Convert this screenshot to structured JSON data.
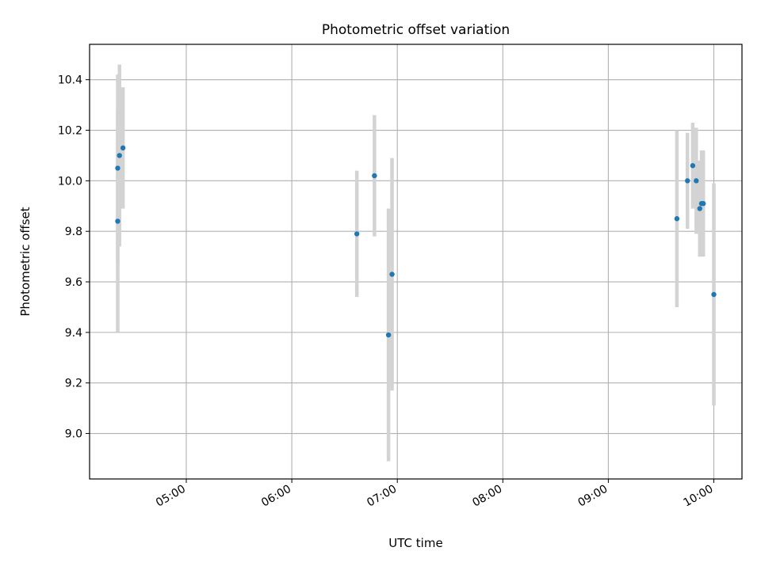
{
  "chart_data": {
    "type": "scatter",
    "title": "Photometric offset variation",
    "xlabel": "UTC time",
    "ylabel": "Photometric offset",
    "x_ticks": [
      "05:00",
      "06:00",
      "07:00",
      "08:00",
      "09:00",
      "10:00"
    ],
    "y_ticks": [
      "9.0",
      "9.2",
      "9.4",
      "9.6",
      "9.8",
      "10.0",
      "10.2",
      "10.4"
    ],
    "xlim": [
      "04:05",
      "10:16"
    ],
    "ylim": [
      8.82,
      10.54
    ],
    "grid": true,
    "point_color": "#1f77b4",
    "errorbar_color": "#d3d3d3",
    "series": [
      {
        "points": [
          {
            "x": "04:21",
            "y": 9.84,
            "yerr": 0.44
          },
          {
            "x": "04:21",
            "y": 10.05,
            "yerr": 0.37
          },
          {
            "x": "04:22",
            "y": 10.1,
            "yerr": 0.36
          },
          {
            "x": "04:24",
            "y": 10.13,
            "yerr": 0.24
          },
          {
            "x": "06:37",
            "y": 9.79,
            "yerr": 0.25
          },
          {
            "x": "06:47",
            "y": 10.02,
            "yerr": 0.24
          },
          {
            "x": "06:55",
            "y": 9.39,
            "yerr": 0.5
          },
          {
            "x": "06:57",
            "y": 9.63,
            "yerr": 0.46
          },
          {
            "x": "09:39",
            "y": 9.85,
            "yerr": 0.35
          },
          {
            "x": "09:45",
            "y": 10.0,
            "yerr": 0.19
          },
          {
            "x": "09:48",
            "y": 10.06,
            "yerr": 0.17
          },
          {
            "x": "09:50",
            "y": 10.0,
            "yerr": 0.21
          },
          {
            "x": "09:52",
            "y": 9.89,
            "yerr": 0.19
          },
          {
            "x": "09:53",
            "y": 9.91,
            "yerr": 0.21
          },
          {
            "x": "09:54",
            "y": 9.91,
            "yerr": 0.21
          },
          {
            "x": "10:00",
            "y": 9.55,
            "yerr": 0.44
          }
        ]
      }
    ]
  }
}
